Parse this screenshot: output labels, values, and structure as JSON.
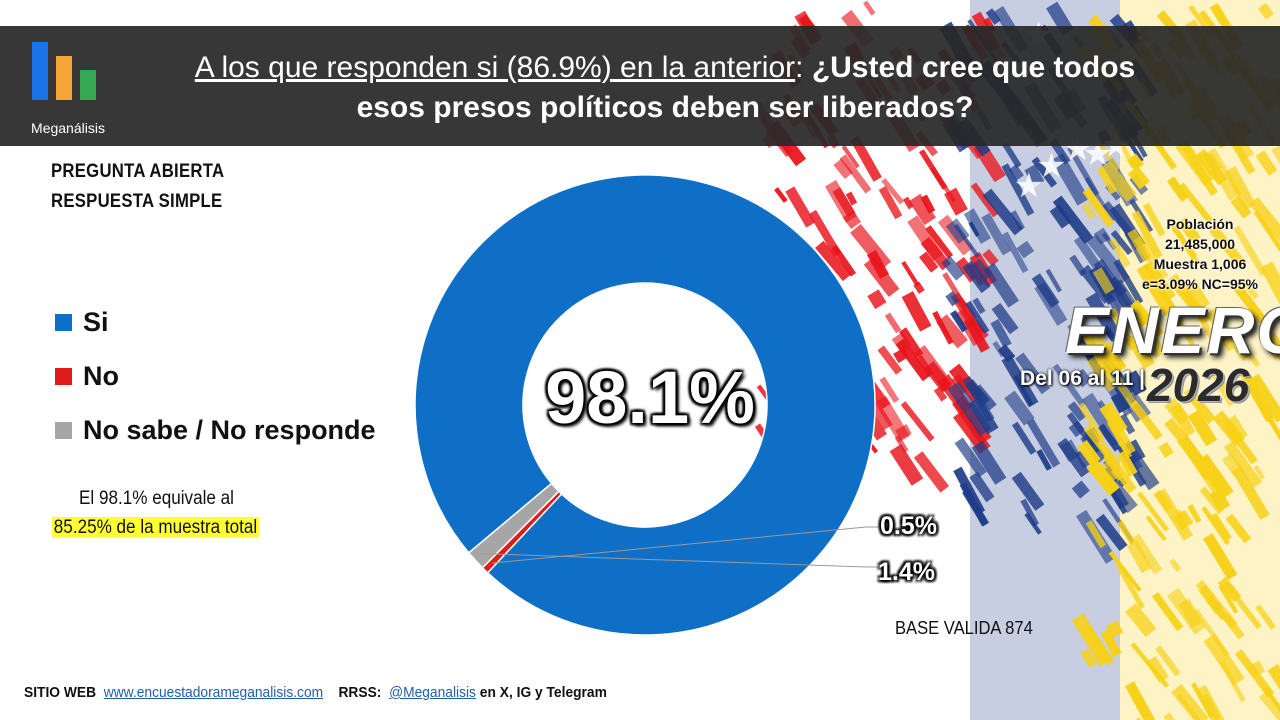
{
  "brand": {
    "name": "Meganálisis",
    "bar_colors": [
      "#1a73e8",
      "#f4a535",
      "#34a853"
    ]
  },
  "header": {
    "title_part1": "A los que responden si (86.9%) en la anterior",
    "title_colon": ": ",
    "title_part2": "¿Usted cree que todos esos presos políticos deben ser liberados?"
  },
  "question_type": [
    "PREGUNTA  ABIERTA",
    "RESPUESTA SIMPLE"
  ],
  "note": {
    "line1": "El 98.1% equivale al",
    "line2": "85.25% de la muestra total"
  },
  "chart_data": {
    "type": "pie",
    "style": "donut",
    "series": [
      {
        "name": "Si",
        "value": 98.1,
        "label": "98.1%",
        "color": "#0f6fc6"
      },
      {
        "name": "No",
        "value": 0.5,
        "label": "0.5%",
        "color": "#e01b1b"
      },
      {
        "name": "No sabe / No responde",
        "value": 1.4,
        "label": "1.4%",
        "color": "#a6a6a6"
      }
    ],
    "legend_position": "left"
  },
  "base_text": "BASE VALIDA 874",
  "survey_meta": {
    "poblacion_label": "Población",
    "poblacion_value": "21,485,000",
    "muestra": "Muestra 1,006",
    "error": "e=3.09%  NC=95%"
  },
  "period": {
    "month": "ENERO",
    "dates": "Del 06 al 11 |",
    "year": "2026"
  },
  "footer": {
    "web_label": "SITIO WEB",
    "web_url": "www.encuestadorameganalisis.com",
    "rrss_label": "RRSS:",
    "rrss_handle": "@Meganalisis",
    "rrss_suffix": "en X, IG y Telegram"
  },
  "flag_colors": [
    "#e8141b",
    "#1f3c88",
    "#f7d117"
  ]
}
